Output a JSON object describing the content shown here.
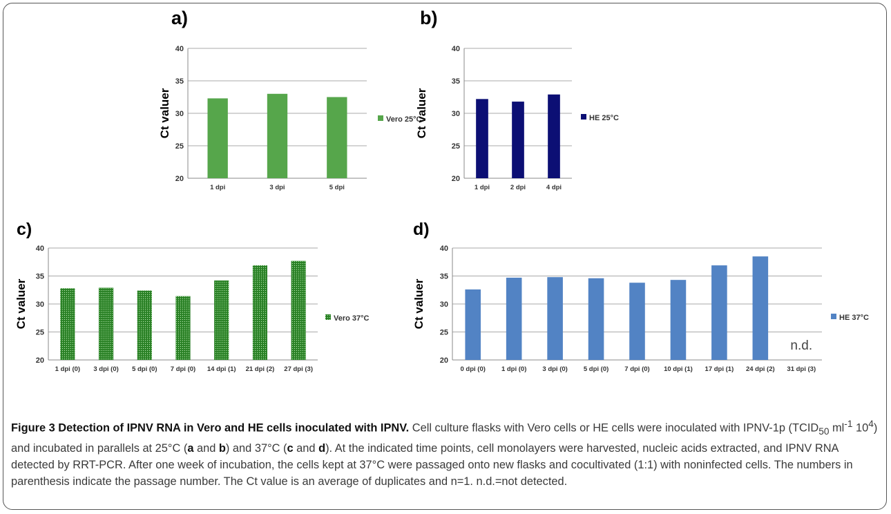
{
  "figure": {
    "caption_title": "Figure 3 Detection of IPNV RNA in Vero and HE cells inoculated with IPNV.",
    "caption_p1": " Cell culture flasks with Vero cells or HE cells were inoculated with IPNV-1p (TCID",
    "caption_sub": "50",
    "caption_p2": " ml",
    "caption_sup1": "-1",
    "caption_p3": " 10",
    "caption_sup2": "4",
    "caption_p4": ") and incubated in parallels at 25°C (",
    "caption_a": "a",
    "caption_and1": " and ",
    "caption_b": "b",
    "caption_p5": ") and 37°C (",
    "caption_c": "c",
    "caption_and2": " and ",
    "caption_d": "d",
    "caption_p6": "). At the indicated time points, cell monolayers were harvested, nucleic acids extracted, and IPNV RNA detected by RRT-PCR. After one week of incubation, the cells kept at 37°C were passaged onto new flasks and cocultivated (1:1) with noninfected cells. The numbers in parenthesis indicate the passage number. The Ct value is an average of duplicates and n=1. n.d.=not detected."
  },
  "chart_data": [
    {
      "panel": "a)",
      "type": "bar",
      "ylabel": "Ct valuer",
      "ylim": [
        20,
        40
      ],
      "yticks": [
        20,
        25,
        30,
        35,
        40
      ],
      "categories": [
        "1 dpi",
        "3 dpi",
        "5 dpi"
      ],
      "series": [
        {
          "name": "Vero 25°C",
          "values": [
            32.3,
            33.0,
            32.5
          ]
        }
      ],
      "color": "#56a64b",
      "grid": true,
      "legend": "right"
    },
    {
      "panel": "b)",
      "type": "bar",
      "ylabel": "Ct valuer",
      "ylim": [
        20,
        40
      ],
      "yticks": [
        20,
        25,
        30,
        35,
        40
      ],
      "categories": [
        "1 dpi",
        "2 dpi",
        "4 dpi"
      ],
      "series": [
        {
          "name": "HE 25°C",
          "values": [
            32.2,
            31.8,
            32.9
          ]
        }
      ],
      "color": "#0c0f74",
      "grid": true,
      "legend": "right"
    },
    {
      "panel": "c)",
      "type": "bar",
      "ylabel": "Ct valuer",
      "ylim": [
        20,
        40
      ],
      "yticks": [
        20,
        25,
        30,
        35,
        40
      ],
      "categories": [
        "1 dpi (0)",
        "3 dpi (0)",
        "5 dpi (0)",
        "7 dpi (0)",
        "14 dpi (1)",
        "21 dpi (2)",
        "27 dpi (3)"
      ],
      "series": [
        {
          "name": "Vero 37°C",
          "values": [
            32.8,
            32.9,
            32.4,
            31.4,
            34.2,
            36.9,
            37.7
          ]
        }
      ],
      "color": "#2f8a2a",
      "grid": true,
      "legend": "right"
    },
    {
      "panel": "d)",
      "type": "bar",
      "ylabel": "Ct valuer",
      "ylim": [
        20,
        40
      ],
      "yticks": [
        20,
        25,
        30,
        35,
        40
      ],
      "categories": [
        "0 dpi (0)",
        "1 dpi (0)",
        "3 dpi (0)",
        "5 dpi (0)",
        "7 dpi (0)",
        "10 dpi (1)",
        "17 dpi (1)",
        "24 dpi (2)",
        "31 dpi (3)"
      ],
      "series": [
        {
          "name": "HE 37°C",
          "values": [
            32.6,
            34.7,
            34.8,
            34.6,
            33.8,
            34.3,
            36.9,
            38.5,
            null
          ]
        }
      ],
      "annotations": [
        "n.d."
      ],
      "color": "#5283c4",
      "grid": true,
      "legend": "right"
    }
  ]
}
